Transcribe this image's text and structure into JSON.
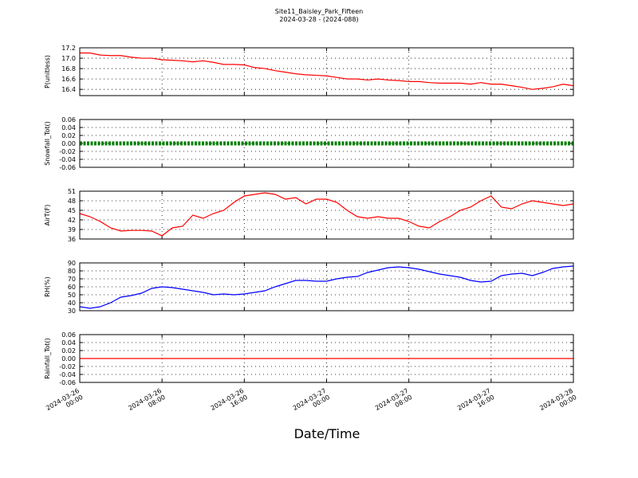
{
  "title": "Site11_Baisley_Park_Fifteen",
  "subtitle": "2024-03-28 - (2024-088)",
  "xlabel": "Date/Time",
  "xlim": [
    "2024-03-26 00:00",
    "2024-03-28 00:00"
  ],
  "xticks": [
    {
      "value": "2024-03-26 00:00",
      "label": "2024-03-26\n00:00"
    },
    {
      "value": "2024-03-26 08:00",
      "label": "2024-03-26\n08:00"
    },
    {
      "value": "2024-03-26 16:00",
      "label": "2024-03-26\n16:00"
    },
    {
      "value": "2024-03-27 00:00",
      "label": "2024-03-27\n00:00"
    },
    {
      "value": "2024-03-27 08:00",
      "label": "2024-03-27\n08:00"
    },
    {
      "value": "2024-03-27 16:00",
      "label": "2024-03-27\n16:00"
    },
    {
      "value": "2024-03-28 00:00",
      "label": "2024-03-28\n00:00"
    }
  ],
  "x": [
    "2024-03-26 00:00",
    "2024-03-26 01:00",
    "2024-03-26 02:00",
    "2024-03-26 03:00",
    "2024-03-26 04:00",
    "2024-03-26 05:00",
    "2024-03-26 06:00",
    "2024-03-26 07:00",
    "2024-03-26 08:00",
    "2024-03-26 09:00",
    "2024-03-26 10:00",
    "2024-03-26 11:00",
    "2024-03-26 12:00",
    "2024-03-26 13:00",
    "2024-03-26 14:00",
    "2024-03-26 15:00",
    "2024-03-26 16:00",
    "2024-03-26 17:00",
    "2024-03-26 18:00",
    "2024-03-26 19:00",
    "2024-03-26 20:00",
    "2024-03-26 21:00",
    "2024-03-26 22:00",
    "2024-03-26 23:00",
    "2024-03-27 00:00",
    "2024-03-27 01:00",
    "2024-03-27 02:00",
    "2024-03-27 03:00",
    "2024-03-27 04:00",
    "2024-03-27 05:00",
    "2024-03-27 06:00",
    "2024-03-27 07:00",
    "2024-03-27 08:00",
    "2024-03-27 09:00",
    "2024-03-27 10:00",
    "2024-03-27 11:00",
    "2024-03-27 12:00",
    "2024-03-27 13:00",
    "2024-03-27 14:00",
    "2024-03-27 15:00",
    "2024-03-27 16:00",
    "2024-03-27 17:00",
    "2024-03-27 18:00",
    "2024-03-27 19:00",
    "2024-03-27 20:00",
    "2024-03-27 21:00",
    "2024-03-27 22:00",
    "2024-03-27 23:00",
    "2024-03-28 00:00"
  ],
  "chart_data": [
    {
      "type": "line",
      "ylabel": "P(unitless)",
      "ylim": [
        16.28,
        17.2
      ],
      "grid": true,
      "yticks": [
        16.4,
        16.6,
        16.8,
        {
          "value": 17,
          "label": "17.0"
        },
        17.2
      ],
      "series": [
        {
          "color": "#ff0000",
          "values": [
            17.1,
            17.1,
            17.06,
            17.05,
            17.05,
            17.02,
            17.0,
            17.0,
            16.97,
            16.96,
            16.95,
            16.93,
            16.95,
            16.92,
            16.88,
            16.88,
            16.87,
            16.82,
            16.8,
            16.76,
            16.73,
            16.7,
            16.68,
            16.67,
            16.66,
            16.63,
            16.6,
            16.6,
            16.58,
            16.6,
            16.58,
            16.57,
            16.55,
            16.55,
            16.53,
            16.52,
            16.52,
            16.52,
            16.5,
            16.53,
            16.5,
            16.5,
            16.47,
            16.44,
            16.4,
            16.42,
            16.45,
            16.5,
            16.47
          ]
        }
      ]
    },
    {
      "type": "line",
      "ylabel": "Snowfall_Tot()",
      "ylim": [
        -0.06,
        0.06
      ],
      "grid": true,
      "yticks": [
        -0.06,
        -0.04,
        -0.02,
        {
          "value": 0,
          "label": "0.00"
        },
        0.02,
        0.04,
        0.06
      ],
      "series": [
        {
          "color": "#008000",
          "markers": true,
          "values": [
            0,
            0,
            0,
            0,
            0,
            0,
            0,
            0,
            0,
            0,
            0,
            0,
            0,
            0,
            0,
            0,
            0,
            0,
            0,
            0,
            0,
            0,
            0,
            0,
            0,
            0,
            0,
            0,
            0,
            0,
            0,
            0,
            0,
            0,
            0,
            0,
            0,
            0,
            0,
            0,
            0,
            0,
            0,
            0,
            0,
            0,
            0,
            0,
            0
          ]
        }
      ]
    },
    {
      "type": "line",
      "ylabel": "AirT(F)",
      "ylim": [
        36,
        51
      ],
      "grid": true,
      "yticks": [
        36,
        39,
        42,
        45,
        48,
        51
      ],
      "series": [
        {
          "color": "#ff0000",
          "values": [
            44,
            43,
            41.5,
            39.5,
            38.5,
            38.7,
            38.7,
            38.5,
            37,
            39.5,
            40,
            43.5,
            42.5,
            44,
            45,
            47.5,
            49.5,
            50,
            50.5,
            50,
            48.5,
            49,
            47,
            48.5,
            48.5,
            47.5,
            45,
            43,
            42.5,
            43,
            42.5,
            42.5,
            41.5,
            40,
            39.5,
            41.5,
            43,
            45,
            46,
            48,
            49.5,
            46,
            45.5,
            47,
            48,
            47.5,
            47,
            46.5,
            47
          ]
        }
      ]
    },
    {
      "type": "line",
      "ylabel": "RH(%)",
      "ylim": [
        30,
        90
      ],
      "grid": true,
      "yticks": [
        30,
        40,
        50,
        60,
        70,
        80,
        90
      ],
      "series": [
        {
          "color": "#0000ff",
          "values": [
            35,
            33,
            35,
            40,
            47,
            49,
            52,
            58,
            60,
            59,
            57,
            55,
            53,
            50,
            51,
            50,
            51,
            53,
            55,
            60,
            64,
            68,
            68,
            67,
            67,
            70,
            72,
            73,
            78,
            81,
            84,
            85,
            84,
            82,
            79,
            76,
            74,
            72,
            68,
            66,
            67,
            74,
            76,
            77,
            74,
            78,
            83,
            85,
            86
          ]
        }
      ]
    },
    {
      "type": "line",
      "ylabel": "Rainfall_Tot()",
      "ylim": [
        -0.06,
        0.06
      ],
      "grid": true,
      "yticks": [
        -0.06,
        -0.04,
        -0.02,
        {
          "value": 0,
          "label": "0.00"
        },
        0.02,
        0.04,
        0.06
      ],
      "series": [
        {
          "color": "#ff0000",
          "values": [
            0,
            0,
            0,
            0,
            0,
            0,
            0,
            0,
            0,
            0,
            0,
            0,
            0,
            0,
            0,
            0,
            0,
            0,
            0,
            0,
            0,
            0,
            0,
            0,
            0,
            0,
            0,
            0,
            0,
            0,
            0,
            0,
            0,
            0,
            0,
            0,
            0,
            0,
            0,
            0,
            0,
            0,
            0,
            0,
            0,
            0,
            0,
            0,
            0
          ]
        }
      ]
    }
  ]
}
